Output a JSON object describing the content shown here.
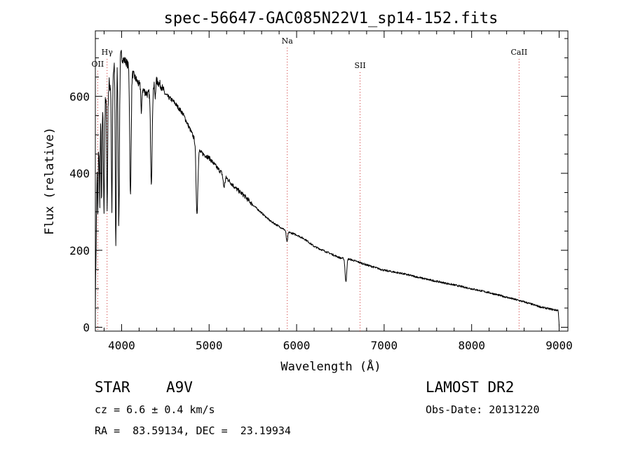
{
  "chart_data": {
    "type": "line",
    "title": "spec-56647-GAC085N22V1_sp14-152.fits",
    "xlabel": "Wavelength (Å)",
    "ylabel": "Flux (relative)",
    "xlim": [
      3700,
      9100
    ],
    "ylim": [
      -10,
      770
    ],
    "xticks": [
      4000,
      5000,
      6000,
      7000,
      8000,
      9000
    ],
    "yticks": [
      0,
      200,
      400,
      600
    ],
    "series": [
      {
        "name": "spectrum",
        "continuum": [
          [
            3700,
            60
          ],
          [
            3720,
            420
          ],
          [
            3760,
            520
          ],
          [
            3800,
            560
          ],
          [
            3850,
            620
          ],
          [
            3900,
            660
          ],
          [
            3950,
            690
          ],
          [
            4000,
            700
          ],
          [
            4050,
            690
          ],
          [
            4100,
            670
          ],
          [
            4150,
            650
          ],
          [
            4200,
            630
          ],
          [
            4250,
            615
          ],
          [
            4300,
            605
          ],
          [
            4400,
            640
          ],
          [
            4450,
            628
          ],
          [
            4500,
            605
          ],
          [
            4600,
            585
          ],
          [
            4700,
            555
          ],
          [
            4800,
            505
          ],
          [
            4900,
            455
          ],
          [
            5000,
            440
          ],
          [
            5100,
            412
          ],
          [
            5200,
            388
          ],
          [
            5300,
            362
          ],
          [
            5400,
            342
          ],
          [
            5500,
            318
          ],
          [
            5600,
            297
          ],
          [
            5700,
            276
          ],
          [
            5800,
            262
          ],
          [
            5900,
            248
          ],
          [
            6000,
            240
          ],
          [
            6100,
            228
          ],
          [
            6200,
            210
          ],
          [
            6300,
            200
          ],
          [
            6400,
            190
          ],
          [
            6500,
            180
          ],
          [
            6600,
            177
          ],
          [
            6700,
            170
          ],
          [
            6800,
            162
          ],
          [
            7000,
            148
          ],
          [
            7200,
            140
          ],
          [
            7500,
            124
          ],
          [
            7800,
            110
          ],
          [
            8000,
            100
          ],
          [
            8200,
            90
          ],
          [
            8400,
            78
          ],
          [
            8600,
            66
          ],
          [
            8800,
            52
          ],
          [
            8950,
            45
          ],
          [
            8990,
            44
          ],
          [
            9000,
            5
          ]
        ],
        "absorption_lines": [
          {
            "center": 3728,
            "depth": 150,
            "width": 4
          },
          {
            "center": 3750,
            "depth": 170,
            "width": 4
          },
          {
            "center": 3771,
            "depth": 220,
            "width": 4
          },
          {
            "center": 3798,
            "depth": 260,
            "width": 5
          },
          {
            "center": 3835,
            "depth": 300,
            "width": 5
          },
          {
            "center": 3889,
            "depth": 340,
            "width": 6
          },
          {
            "center": 3934,
            "depth": 460,
            "width": 6
          },
          {
            "center": 3968,
            "depth": 420,
            "width": 7
          },
          {
            "center": 4101,
            "depth": 330,
            "width": 8
          },
          {
            "center": 4226,
            "depth": 70,
            "width": 5
          },
          {
            "center": 4340,
            "depth": 240,
            "width": 9
          },
          {
            "center": 4383,
            "depth": 40,
            "width": 5
          },
          {
            "center": 4861,
            "depth": 180,
            "width": 10
          },
          {
            "center": 5170,
            "depth": 30,
            "width": 10
          },
          {
            "center": 5890,
            "depth": 28,
            "width": 8
          },
          {
            "center": 6563,
            "depth": 60,
            "width": 9
          }
        ]
      }
    ],
    "line_markers": [
      {
        "label": "OII",
        "x": 3727
      },
      {
        "label": "Hγ",
        "x": 3834
      },
      {
        "label": "Na",
        "x": 5893
      },
      {
        "label": "SII",
        "x": 6725
      },
      {
        "label": "CaII",
        "x": 8542
      }
    ]
  },
  "info": {
    "object_type": "STAR",
    "subclass": "A9V",
    "cz": "cz = 6.6 ± 0.4 km/s",
    "radec": "RA =  83.59134, DEC =  23.19934",
    "survey": "LAMOST DR2",
    "obs_date": "Obs-Date: 20131220"
  },
  "colors": {
    "axis": "#000000",
    "spectrum": "#000000",
    "marker_line": "#cc3333"
  }
}
